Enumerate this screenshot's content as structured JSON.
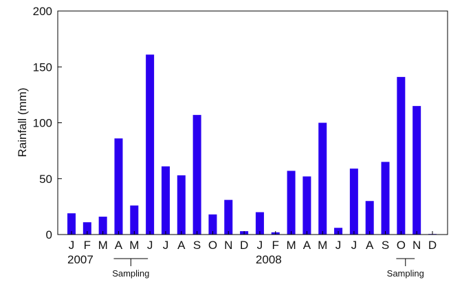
{
  "chart_data": {
    "type": "bar",
    "title": "",
    "xlabel": "",
    "ylabel": "Rainfall (mm)",
    "ylim": [
      0,
      200
    ],
    "yticks": [
      0,
      50,
      100,
      150,
      200
    ],
    "grid": false,
    "legend": "none",
    "bar_color": "#2a00f0",
    "categories": [
      "J",
      "F",
      "M",
      "A",
      "M",
      "J",
      "J",
      "A",
      "S",
      "O",
      "N",
      "D",
      "J",
      "F",
      "M",
      "A",
      "M",
      "J",
      "J",
      "A",
      "S",
      "O",
      "N",
      "D"
    ],
    "values": [
      19,
      11,
      16,
      86,
      26,
      161,
      61,
      53,
      107,
      18,
      31,
      3,
      20,
      2,
      57,
      52,
      100,
      6,
      59,
      30,
      65,
      141,
      115,
      0.5
    ],
    "year_labels": [
      {
        "text": "2007",
        "month_index": 0
      },
      {
        "text": "2008",
        "month_index": 12
      }
    ],
    "annotations": [
      {
        "text": "Sampling",
        "from_index": 3,
        "to_index": 5
      },
      {
        "text": "Sampling",
        "from_index": 21,
        "to_index": 22
      }
    ]
  }
}
